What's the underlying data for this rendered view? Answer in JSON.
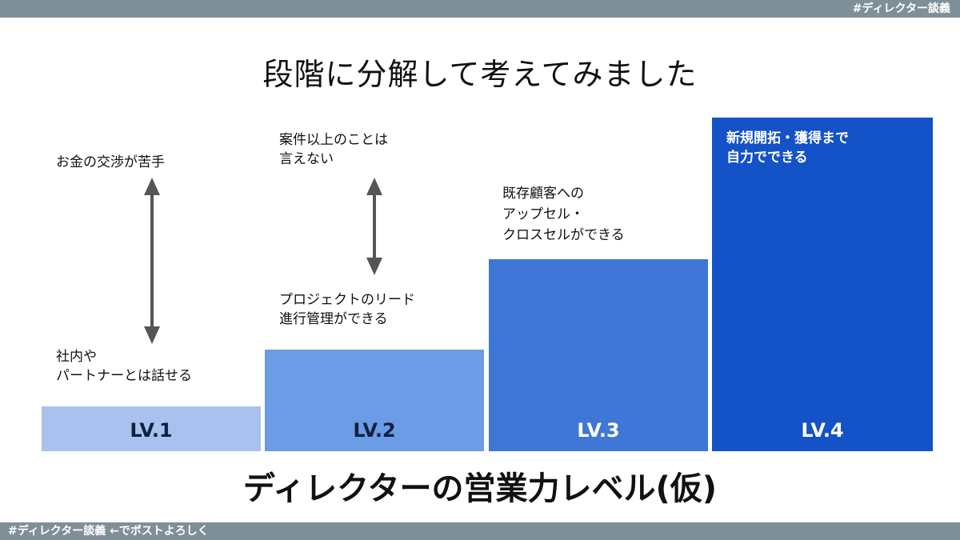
{
  "header": {
    "tag": "#ディレクター談義"
  },
  "title": "段階に分解して考えてみました",
  "levels": [
    {
      "label": "LV.1",
      "color": "#a9c1ee"
    },
    {
      "label": "LV.2",
      "color": "#6c9ce6"
    },
    {
      "label": "LV.3",
      "color": "#3f77d6"
    },
    {
      "label": "LV.4",
      "color": "#1452c8"
    }
  ],
  "notes": {
    "lv1_top": "お金の交渉が苦手",
    "lv1_bottom": [
      "社内や",
      "パートナーとは話せる"
    ],
    "lv2_top": [
      "案件以上のことは",
      "言えない"
    ],
    "lv2_bottom": [
      "プロジェクトのリード",
      "進行管理ができる"
    ],
    "lv3": [
      "既存顧客への",
      "アップセル・",
      "クロスセルができる"
    ],
    "lv4": [
      "新規開拓・獲得まで",
      "自力でできる"
    ]
  },
  "subtitle": "ディレクターの営業力レベル(仮)",
  "footer": {
    "text": "#ディレクター談義 ←でポストよろしく"
  }
}
